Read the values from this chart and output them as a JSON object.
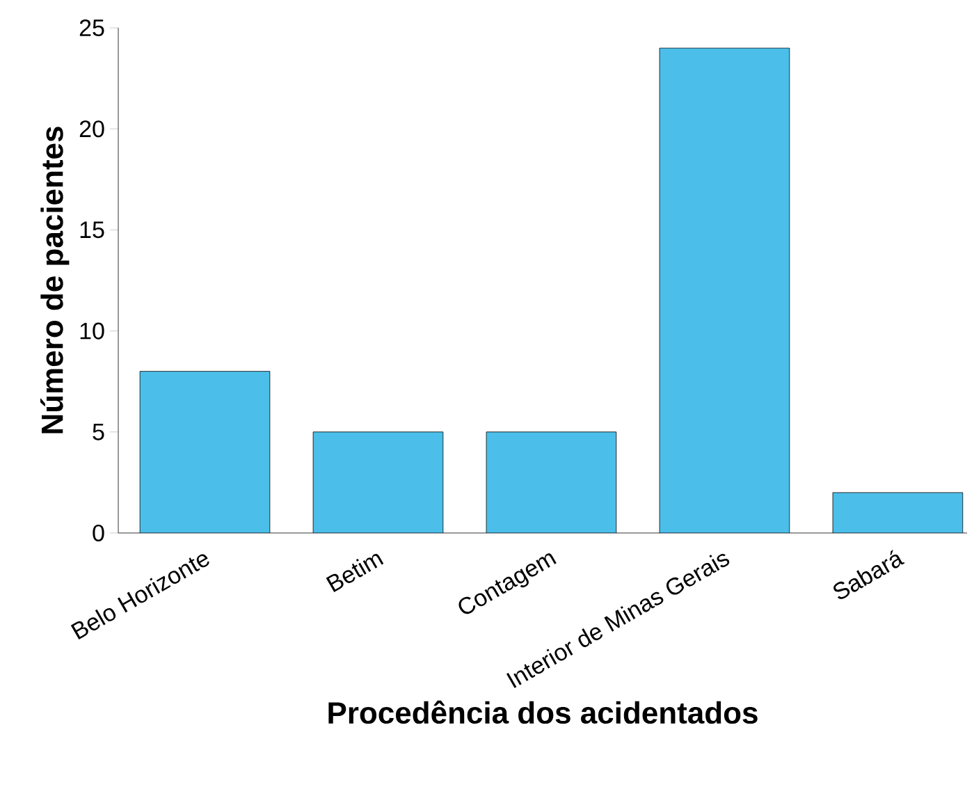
{
  "chart_data": {
    "type": "bar",
    "xlabel": "Procedência dos acidentados",
    "ylabel": "Número de pacientes",
    "categories": [
      "Belo Horizonte",
      "Betim",
      "Contagem",
      "Interior de Minas Gerais",
      "Sabará"
    ],
    "values": [
      8,
      5,
      5,
      24,
      2
    ],
    "color": "#4bbfea",
    "ylim": [
      0,
      25
    ],
    "yticks": [
      0,
      5,
      10,
      15,
      20,
      25
    ]
  }
}
